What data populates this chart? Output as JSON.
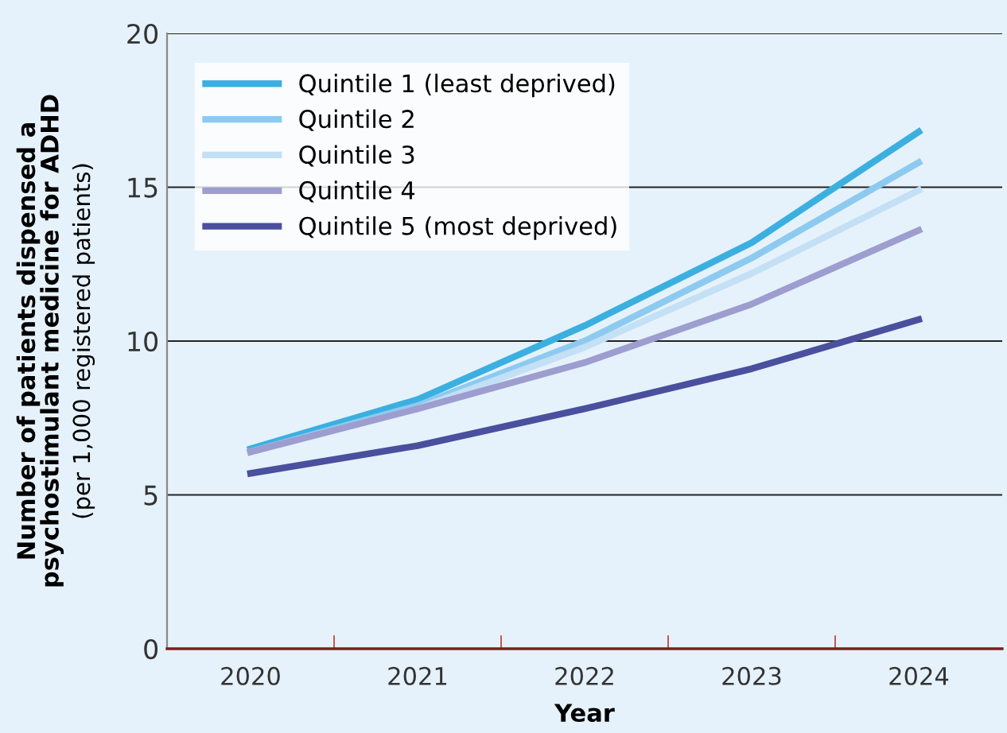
{
  "chart_data": {
    "type": "line",
    "xlabel": "Year",
    "ylabel": "Number of patients dispensed a\npsychostimulant medicine for ADHD\n(per 1,000 registered patients)",
    "categories": [
      "2020",
      "2021",
      "2022",
      "2023",
      "2024"
    ],
    "series": [
      {
        "name": "Quintile 1 (least deprived)",
        "color": "#3bb0e0",
        "values": [
          6.5,
          8.1,
          10.5,
          13.2,
          16.8
        ]
      },
      {
        "name": "Quintile 2",
        "color": "#8dcaf0",
        "values": [
          6.4,
          7.9,
          10.0,
          12.7,
          15.8
        ]
      },
      {
        "name": "Quintile 3",
        "color": "#c3e0f5",
        "values": [
          6.4,
          7.8,
          9.8,
          12.2,
          14.9
        ]
      },
      {
        "name": "Quintile 4",
        "color": "#9d9dd0",
        "values": [
          6.4,
          7.8,
          9.3,
          11.2,
          13.6
        ]
      },
      {
        "name": "Quintile 5 (most deprived)",
        "color": "#4a4f9e",
        "values": [
          5.7,
          6.6,
          7.8,
          9.1,
          10.7
        ]
      }
    ],
    "ylim": [
      0,
      20
    ],
    "yticks": [
      0,
      5,
      10,
      15,
      20
    ],
    "grid": "y",
    "legend": "top left",
    "line_style": "solid",
    "marker": "none"
  }
}
